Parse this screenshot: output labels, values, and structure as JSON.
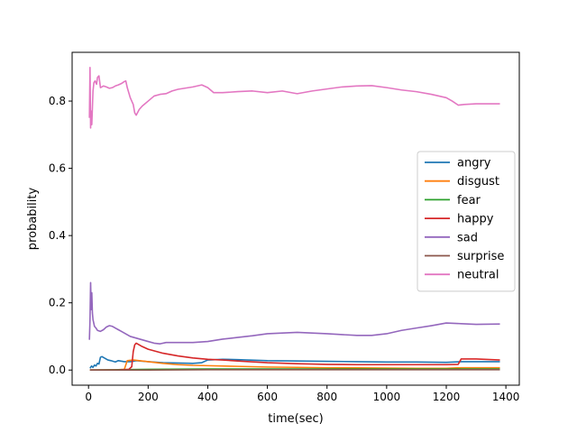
{
  "chart_data": {
    "type": "line",
    "title": "",
    "xlabel": "time(sec)",
    "ylabel": "probability",
    "xlim": [
      -55,
      1445
    ],
    "ylim": [
      -0.045,
      0.945
    ],
    "xticks": [
      0,
      200,
      400,
      600,
      800,
      1000,
      1200,
      1400
    ],
    "xtick_labels": [
      "0",
      "200",
      "400",
      "600",
      "800",
      "1000",
      "1200",
      "1400"
    ],
    "yticks": [
      0.0,
      0.2,
      0.4,
      0.6,
      0.8
    ],
    "ytick_labels": [
      "0.0",
      "0.2",
      "0.4",
      "0.6",
      "0.8"
    ],
    "grid": false,
    "legend_position": "center-right",
    "series": [
      {
        "name": "angry",
        "color": "#1f77b4",
        "points": [
          [
            5,
            0.005
          ],
          [
            10,
            0.012
          ],
          [
            15,
            0.008
          ],
          [
            20,
            0.015
          ],
          [
            25,
            0.012
          ],
          [
            30,
            0.02
          ],
          [
            35,
            0.018
          ],
          [
            40,
            0.038
          ],
          [
            45,
            0.04
          ],
          [
            55,
            0.035
          ],
          [
            65,
            0.03
          ],
          [
            75,
            0.028
          ],
          [
            90,
            0.024
          ],
          [
            100,
            0.028
          ],
          [
            120,
            0.025
          ],
          [
            140,
            0.025
          ],
          [
            160,
            0.028
          ],
          [
            200,
            0.025
          ],
          [
            250,
            0.022
          ],
          [
            300,
            0.021
          ],
          [
            350,
            0.02
          ],
          [
            380,
            0.022
          ],
          [
            400,
            0.03
          ],
          [
            450,
            0.032
          ],
          [
            500,
            0.031
          ],
          [
            600,
            0.028
          ],
          [
            700,
            0.027
          ],
          [
            800,
            0.026
          ],
          [
            900,
            0.025
          ],
          [
            1000,
            0.024
          ],
          [
            1100,
            0.024
          ],
          [
            1200,
            0.023
          ],
          [
            1250,
            0.025
          ],
          [
            1300,
            0.025
          ],
          [
            1380,
            0.025
          ]
        ]
      },
      {
        "name": "disgust",
        "color": "#ff7f0e",
        "points": [
          [
            5,
            0.0
          ],
          [
            50,
            0.0
          ],
          [
            100,
            0.001
          ],
          [
            120,
            0.002
          ],
          [
            130,
            0.028
          ],
          [
            150,
            0.03
          ],
          [
            170,
            0.028
          ],
          [
            200,
            0.025
          ],
          [
            250,
            0.02
          ],
          [
            300,
            0.016
          ],
          [
            350,
            0.014
          ],
          [
            400,
            0.013
          ],
          [
            500,
            0.011
          ],
          [
            600,
            0.009
          ],
          [
            700,
            0.008
          ],
          [
            800,
            0.007
          ],
          [
            1000,
            0.006
          ],
          [
            1100,
            0.005
          ],
          [
            1200,
            0.005
          ],
          [
            1250,
            0.007
          ],
          [
            1380,
            0.007
          ]
        ]
      },
      {
        "name": "fear",
        "color": "#2ca02c",
        "points": [
          [
            5,
            0.0
          ],
          [
            100,
            0.001
          ],
          [
            200,
            0.002
          ],
          [
            400,
            0.003
          ],
          [
            600,
            0.003
          ],
          [
            800,
            0.003
          ],
          [
            1000,
            0.003
          ],
          [
            1200,
            0.003
          ],
          [
            1380,
            0.003
          ]
        ]
      },
      {
        "name": "happy",
        "color": "#d62728",
        "points": [
          [
            5,
            0.0
          ],
          [
            100,
            0.0
          ],
          [
            135,
            0.002
          ],
          [
            145,
            0.01
          ],
          [
            150,
            0.055
          ],
          [
            155,
            0.075
          ],
          [
            160,
            0.08
          ],
          [
            180,
            0.07
          ],
          [
            200,
            0.062
          ],
          [
            250,
            0.05
          ],
          [
            300,
            0.042
          ],
          [
            350,
            0.036
          ],
          [
            400,
            0.032
          ],
          [
            450,
            0.03
          ],
          [
            500,
            0.027
          ],
          [
            600,
            0.022
          ],
          [
            700,
            0.019
          ],
          [
            800,
            0.017
          ],
          [
            900,
            0.016
          ],
          [
            1000,
            0.016
          ],
          [
            1100,
            0.016
          ],
          [
            1200,
            0.016
          ],
          [
            1240,
            0.017
          ],
          [
            1250,
            0.033
          ],
          [
            1300,
            0.033
          ],
          [
            1380,
            0.03
          ]
        ]
      },
      {
        "name": "sad",
        "color": "#9467bd",
        "points": [
          [
            3,
            0.09
          ],
          [
            5,
            0.15
          ],
          [
            7,
            0.26
          ],
          [
            9,
            0.18
          ],
          [
            11,
            0.23
          ],
          [
            13,
            0.17
          ],
          [
            15,
            0.15
          ],
          [
            20,
            0.13
          ],
          [
            25,
            0.125
          ],
          [
            30,
            0.118
          ],
          [
            40,
            0.115
          ],
          [
            50,
            0.12
          ],
          [
            60,
            0.128
          ],
          [
            70,
            0.132
          ],
          [
            80,
            0.13
          ],
          [
            90,
            0.125
          ],
          [
            100,
            0.12
          ],
          [
            110,
            0.115
          ],
          [
            120,
            0.11
          ],
          [
            140,
            0.1
          ],
          [
            160,
            0.095
          ],
          [
            180,
            0.09
          ],
          [
            200,
            0.085
          ],
          [
            220,
            0.08
          ],
          [
            240,
            0.078
          ],
          [
            260,
            0.082
          ],
          [
            300,
            0.082
          ],
          [
            350,
            0.082
          ],
          [
            400,
            0.085
          ],
          [
            450,
            0.092
          ],
          [
            500,
            0.097
          ],
          [
            550,
            0.102
          ],
          [
            600,
            0.108
          ],
          [
            650,
            0.11
          ],
          [
            700,
            0.112
          ],
          [
            800,
            0.108
          ],
          [
            900,
            0.103
          ],
          [
            950,
            0.103
          ],
          [
            1000,
            0.108
          ],
          [
            1050,
            0.118
          ],
          [
            1100,
            0.125
          ],
          [
            1150,
            0.132
          ],
          [
            1200,
            0.14
          ],
          [
            1250,
            0.138
          ],
          [
            1300,
            0.136
          ],
          [
            1380,
            0.137
          ]
        ]
      },
      {
        "name": "surprise",
        "color": "#8c564b",
        "points": [
          [
            5,
            0.0
          ],
          [
            200,
            0.0
          ],
          [
            400,
            0.001
          ],
          [
            600,
            0.001
          ],
          [
            800,
            0.001
          ],
          [
            1000,
            0.001
          ],
          [
            1200,
            0.001
          ],
          [
            1380,
            0.001
          ]
        ]
      },
      {
        "name": "neutral",
        "color": "#e377c2",
        "points": [
          [
            3,
            0.75
          ],
          [
            5,
            0.9
          ],
          [
            7,
            0.72
          ],
          [
            9,
            0.77
          ],
          [
            11,
            0.73
          ],
          [
            13,
            0.78
          ],
          [
            15,
            0.83
          ],
          [
            18,
            0.855
          ],
          [
            22,
            0.86
          ],
          [
            27,
            0.85
          ],
          [
            30,
            0.87
          ],
          [
            35,
            0.875
          ],
          [
            40,
            0.84
          ],
          [
            50,
            0.845
          ],
          [
            60,
            0.842
          ],
          [
            70,
            0.838
          ],
          [
            80,
            0.84
          ],
          [
            90,
            0.845
          ],
          [
            100,
            0.848
          ],
          [
            110,
            0.852
          ],
          [
            120,
            0.858
          ],
          [
            125,
            0.86
          ],
          [
            130,
            0.84
          ],
          [
            140,
            0.81
          ],
          [
            150,
            0.79
          ],
          [
            155,
            0.765
          ],
          [
            160,
            0.758
          ],
          [
            170,
            0.775
          ],
          [
            180,
            0.785
          ],
          [
            200,
            0.8
          ],
          [
            220,
            0.815
          ],
          [
            240,
            0.82
          ],
          [
            260,
            0.822
          ],
          [
            280,
            0.83
          ],
          [
            300,
            0.835
          ],
          [
            350,
            0.842
          ],
          [
            380,
            0.848
          ],
          [
            400,
            0.84
          ],
          [
            420,
            0.825
          ],
          [
            450,
            0.825
          ],
          [
            500,
            0.828
          ],
          [
            550,
            0.83
          ],
          [
            600,
            0.825
          ],
          [
            650,
            0.83
          ],
          [
            700,
            0.822
          ],
          [
            750,
            0.83
          ],
          [
            800,
            0.836
          ],
          [
            850,
            0.842
          ],
          [
            900,
            0.845
          ],
          [
            950,
            0.846
          ],
          [
            1000,
            0.84
          ],
          [
            1050,
            0.833
          ],
          [
            1100,
            0.828
          ],
          [
            1150,
            0.82
          ],
          [
            1200,
            0.81
          ],
          [
            1220,
            0.8
          ],
          [
            1240,
            0.788
          ],
          [
            1260,
            0.79
          ],
          [
            1300,
            0.792
          ],
          [
            1380,
            0.792
          ]
        ]
      }
    ]
  }
}
